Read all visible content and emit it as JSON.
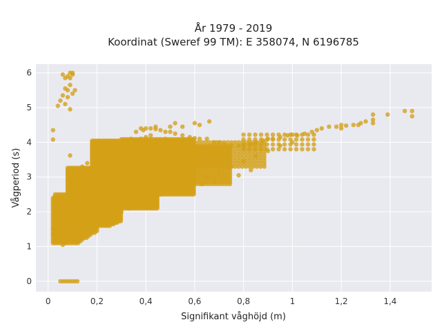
{
  "chart_data": {
    "type": "scatter",
    "title": "År 1979 - 2019",
    "subtitle": "Koordinat (Sweref 99 TM): E 358074, N 6196785",
    "xlabel": "Signifikant våghöjd (m)",
    "ylabel": "Vågperiod (s)",
    "xlim": [
      -0.05,
      1.57
    ],
    "ylim": [
      -0.3,
      6.25
    ],
    "xticks": [
      0,
      0.2,
      0.4,
      0.6,
      0.8,
      1,
      1.2,
      1.4
    ],
    "xtick_labels": [
      "0",
      "0,2",
      "0,4",
      "0,6",
      "0,8",
      "1",
      "1,2",
      "1,4"
    ],
    "yticks": [
      0,
      1,
      2,
      3,
      4,
      5,
      6
    ],
    "ytick_labels": [
      "0",
      "1",
      "2",
      "3",
      "4",
      "5",
      "6"
    ],
    "grid": true,
    "background": "#E9E9F0",
    "marker_color": "#D4A017",
    "series": [
      {
        "points": [
          [
            0.02,
            4.35
          ],
          [
            0.02,
            4.08
          ],
          [
            0.06,
            5.95
          ],
          [
            0.07,
            5.85
          ],
          [
            0.08,
            5.9
          ],
          [
            0.09,
            6.0
          ],
          [
            0.1,
            6.0
          ],
          [
            0.1,
            5.95
          ],
          [
            0.09,
            5.85
          ],
          [
            0.07,
            5.55
          ],
          [
            0.08,
            5.5
          ],
          [
            0.09,
            5.65
          ],
          [
            0.06,
            5.35
          ],
          [
            0.05,
            5.2
          ],
          [
            0.04,
            5.05
          ],
          [
            0.08,
            5.3
          ],
          [
            0.07,
            5.1
          ],
          [
            0.09,
            4.95
          ],
          [
            0.1,
            5.4
          ],
          [
            0.11,
            5.5
          ],
          [
            0.05,
            0.0
          ],
          [
            0.06,
            0.0
          ],
          [
            0.07,
            0.0
          ],
          [
            0.08,
            0.0
          ],
          [
            0.09,
            0.0
          ],
          [
            0.1,
            0.0
          ],
          [
            0.11,
            0.0
          ],
          [
            0.12,
            0.0
          ],
          [
            0.09,
            3.62
          ],
          [
            0.02,
            1.5
          ],
          [
            0.02,
            1.35
          ],
          [
            0.03,
            1.6
          ],
          [
            0.04,
            1.25
          ],
          [
            0.03,
            1.45
          ],
          [
            0.05,
            1.15
          ],
          [
            0.06,
            1.05
          ],
          [
            0.07,
            1.1
          ],
          [
            0.04,
            1.55
          ],
          [
            0.05,
            1.7
          ],
          [
            0.06,
            1.9
          ],
          [
            0.07,
            2.0
          ],
          [
            0.08,
            2.2
          ],
          [
            0.09,
            2.4
          ],
          [
            0.1,
            2.6
          ],
          [
            0.11,
            2.7
          ],
          [
            0.12,
            2.85
          ],
          [
            0.13,
            3.0
          ],
          [
            0.15,
            3.1
          ],
          [
            0.17,
            3.25
          ],
          [
            0.2,
            3.4
          ],
          [
            0.22,
            3.5
          ],
          [
            0.25,
            3.65
          ],
          [
            0.28,
            3.75
          ],
          [
            0.3,
            3.85
          ],
          [
            0.32,
            3.95
          ],
          [
            0.35,
            4.0
          ],
          [
            0.38,
            4.1
          ],
          [
            0.4,
            4.15
          ],
          [
            0.42,
            4.2
          ],
          [
            0.38,
            4.4
          ],
          [
            0.4,
            4.4
          ],
          [
            0.42,
            4.4
          ],
          [
            0.44,
            4.38
          ],
          [
            0.46,
            4.35
          ],
          [
            0.48,
            4.3
          ],
          [
            0.5,
            4.3
          ],
          [
            0.52,
            4.25
          ],
          [
            0.55,
            4.2
          ],
          [
            0.58,
            4.15
          ],
          [
            0.6,
            4.12
          ],
          [
            0.62,
            4.1
          ],
          [
            0.65,
            4.1
          ],
          [
            0.68,
            4.0
          ],
          [
            0.7,
            4.0
          ],
          [
            0.72,
            3.95
          ],
          [
            0.75,
            3.92
          ],
          [
            0.78,
            3.9
          ],
          [
            0.8,
            3.92
          ],
          [
            0.83,
            3.95
          ],
          [
            0.85,
            4.0
          ],
          [
            0.88,
            4.05
          ],
          [
            0.9,
            4.1
          ],
          [
            0.92,
            4.1
          ],
          [
            0.95,
            4.15
          ],
          [
            0.98,
            4.2
          ],
          [
            1.0,
            4.22
          ],
          [
            1.02,
            4.2
          ],
          [
            1.05,
            4.25
          ],
          [
            1.08,
            4.3
          ],
          [
            1.1,
            4.35
          ],
          [
            1.12,
            4.4
          ],
          [
            1.15,
            4.45
          ],
          [
            1.18,
            4.45
          ],
          [
            1.2,
            4.5
          ],
          [
            1.22,
            4.48
          ],
          [
            1.25,
            4.5
          ],
          [
            1.28,
            4.55
          ],
          [
            1.3,
            4.6
          ],
          [
            1.33,
            4.65
          ],
          [
            1.33,
            4.8
          ],
          [
            1.39,
            4.8
          ],
          [
            1.46,
            4.9
          ],
          [
            1.49,
            4.9
          ],
          [
            1.49,
            4.75
          ],
          [
            1.33,
            4.55
          ],
          [
            1.27,
            4.5
          ],
          [
            1.2,
            4.4
          ],
          [
            0.6,
            4.55
          ],
          [
            0.62,
            4.5
          ],
          [
            0.55,
            4.45
          ],
          [
            0.5,
            4.45
          ],
          [
            0.44,
            4.45
          ],
          [
            0.66,
            4.6
          ],
          [
            0.52,
            4.55
          ],
          [
            0.1,
            1.3
          ],
          [
            0.12,
            1.2
          ],
          [
            0.14,
            1.25
          ],
          [
            0.16,
            1.4
          ],
          [
            0.18,
            1.5
          ],
          [
            0.2,
            1.6
          ],
          [
            0.22,
            1.7
          ],
          [
            0.25,
            1.8
          ],
          [
            0.28,
            1.9
          ],
          [
            0.3,
            2.0
          ],
          [
            0.33,
            2.1
          ],
          [
            0.35,
            2.2
          ],
          [
            0.38,
            2.3
          ],
          [
            0.4,
            2.35
          ],
          [
            0.43,
            2.45
          ],
          [
            0.46,
            2.5
          ],
          [
            0.5,
            2.6
          ],
          [
            0.55,
            2.7
          ],
          [
            0.6,
            2.85
          ],
          [
            0.65,
            3.0
          ],
          [
            0.7,
            3.15
          ],
          [
            0.75,
            3.3
          ],
          [
            0.8,
            3.45
          ],
          [
            0.85,
            3.6
          ],
          [
            0.9,
            3.75
          ],
          [
            0.95,
            3.9
          ],
          [
            1.0,
            4.0
          ],
          [
            0.72,
            2.95
          ],
          [
            0.78,
            3.05
          ],
          [
            0.83,
            3.2
          ],
          [
            0.68,
            2.9
          ],
          [
            0.63,
            2.8
          ],
          [
            0.58,
            3.4
          ],
          [
            0.62,
            3.6
          ],
          [
            0.7,
            3.8
          ],
          [
            0.12,
            3.2
          ],
          [
            0.14,
            3.3
          ],
          [
            0.16,
            3.4
          ],
          [
            0.11,
            2.5
          ],
          [
            0.15,
            2.9
          ],
          [
            0.26,
            3.85
          ],
          [
            0.3,
            4.05
          ],
          [
            0.34,
            4.1
          ],
          [
            0.36,
            4.3
          ],
          [
            0.39,
            4.35
          ],
          [
            0.48,
            4.1
          ],
          [
            0.45,
            3.9
          ],
          [
            0.52,
            3.85
          ],
          [
            0.56,
            3.7
          ],
          [
            0.66,
            3.7
          ]
        ],
        "blobs": [
          {
            "x": [
              0.02,
              0.2
            ],
            "y": [
              1.1,
              2.5
            ],
            "weight": 1.4
          },
          {
            "x": [
              0.08,
              0.3
            ],
            "y": [
              1.6,
              3.3
            ],
            "weight": 1.6
          },
          {
            "x": [
              0.18,
              0.45
            ],
            "y": [
              2.1,
              4.05
            ],
            "weight": 1.8
          },
          {
            "x": [
              0.3,
              0.6
            ],
            "y": [
              2.5,
              4.1
            ],
            "weight": 1.5
          },
          {
            "x": [
              0.45,
              0.75
            ],
            "y": [
              2.8,
              3.9
            ],
            "weight": 1.1
          },
          {
            "x": [
              0.6,
              0.9
            ],
            "y": [
              3.3,
              4.0
            ],
            "weight": 0.8
          },
          {
            "x": [
              0.8,
              1.1
            ],
            "y": [
              3.8,
              4.25
            ],
            "weight": 0.5
          }
        ]
      }
    ]
  }
}
